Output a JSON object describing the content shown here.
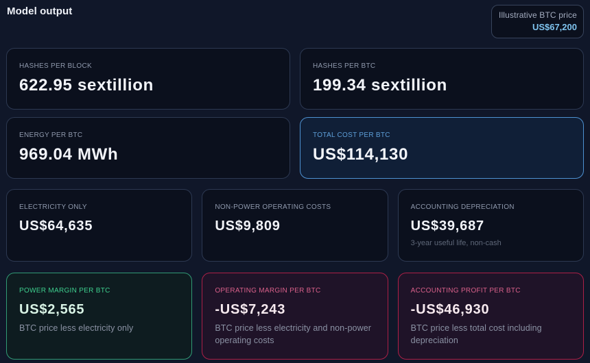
{
  "header": {
    "title": "Model output",
    "badge": {
      "label": "Illustrative BTC price",
      "value": "US$67,200"
    }
  },
  "cards": [
    {
      "label": "HASHES PER BLOCK",
      "value": "622.95 sextillion",
      "variant": "neutral"
    },
    {
      "label": "HASHES PER BTC",
      "value": "199.34 sextillion",
      "variant": "neutral"
    },
    {
      "label": "ENERGY PER BTC",
      "value": "969.04 MWh",
      "variant": "neutral"
    },
    {
      "label": "TOTAL COST PER BTC",
      "value": "US$114,130",
      "variant": "highlight-blue"
    },
    {
      "label": "ELECTRICITY ONLY",
      "value": "US$64,635",
      "variant": "neutral"
    },
    {
      "label": "NON-POWER OPERATING COSTS",
      "value": "US$9,809",
      "variant": "neutral"
    },
    {
      "label": "ACCOUNTING DEPRECIATION",
      "value": "US$39,687",
      "note": "3-year useful life, non-cash",
      "variant": "neutral"
    },
    {
      "label": "POWER MARGIN PER BTC",
      "value": "US$2,565",
      "note": "BTC price less electricity only",
      "variant": "positive-green"
    },
    {
      "label": "OPERATING MARGIN PER BTC",
      "value": "-US$7,243",
      "note": "BTC price less electricity and non-power operating costs",
      "variant": "negative-red"
    },
    {
      "label": "ACCOUNTING PROFIT PER BTC",
      "value": "-US$46,930",
      "note": "BTC price less total cost including depreciation",
      "variant": "negative-red"
    }
  ],
  "colors": {
    "page_background": "#101729",
    "card_background": "#0b101d",
    "highlight_blue": "#4e92d2",
    "positive_green": "#319b76",
    "negative_red": "#ad2047",
    "badge_value_blue": "#7fc3ee"
  }
}
